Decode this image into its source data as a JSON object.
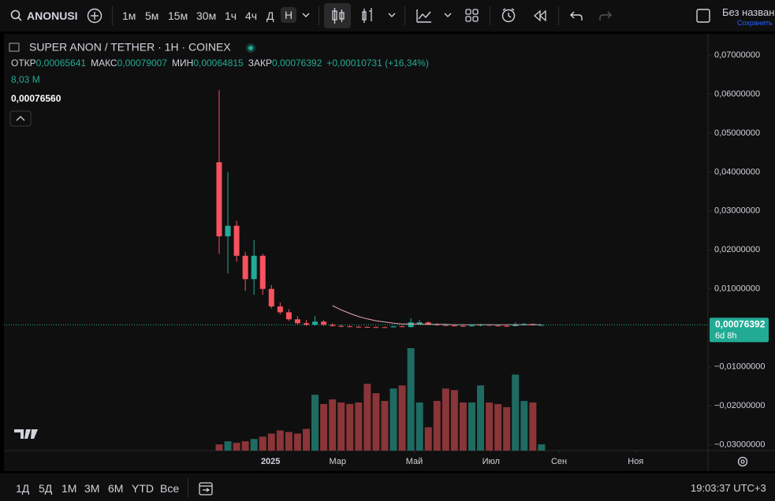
{
  "toolbar": {
    "symbol": "ANONUSI",
    "intervals": [
      "1м",
      "5м",
      "15м",
      "30м",
      "1ч",
      "4ч",
      "Д",
      "Н"
    ],
    "layout_name": "Без назван",
    "save_status": "Сохранить"
  },
  "legend": {
    "title": "SUPER ANON / TETHER · 1H · COINEX",
    "open_label": "ОТКР",
    "open": "0,00065641",
    "high_label": "МАКС",
    "high": "0,00079007",
    "low_label": "МИН",
    "low": "0,00064815",
    "close_label": "ЗАКР",
    "close": "0,00076392",
    "change": "+0,00010731 (+16,34%)",
    "volume": "8,03 M",
    "crosshair_price": "0,00076560"
  },
  "chart_data": {
    "type": "candlestick",
    "x": [
      0,
      1,
      2,
      3,
      4,
      5,
      6,
      7,
      8,
      9,
      10,
      11,
      12,
      13,
      14,
      15,
      16,
      17,
      18,
      19,
      20,
      21,
      22,
      23,
      24,
      25,
      26,
      27,
      28,
      29,
      30,
      31,
      32,
      33,
      34,
      35,
      36,
      37
    ],
    "open": [
      0.0425,
      0.0235,
      0.0262,
      0.0185,
      0.0125,
      0.0185,
      0.01,
      0.0055,
      0.004,
      0.0022,
      0.0012,
      0.0008,
      0.0016,
      0.0008,
      0.0005,
      0.0004,
      0.0003,
      0.00025,
      0.0002,
      0.00018,
      0.00015,
      0.0004,
      0.0002,
      0.001,
      0.0014,
      0.0009,
      0.0007,
      0.0006,
      0.0005,
      0.0004,
      0.0006,
      0.0008,
      0.0006,
      0.0005,
      0.00045,
      0.0009,
      0.001,
      0.00065641
    ],
    "high": [
      0.061,
      0.04,
      0.0275,
      0.0195,
      0.0225,
      0.019,
      0.011,
      0.0065,
      0.0048,
      0.003,
      0.002,
      0.003,
      0.002,
      0.0012,
      0.0008,
      0.0006,
      0.0005,
      0.0004,
      0.0004,
      0.0003,
      0.0005,
      0.0006,
      0.0025,
      0.002,
      0.0016,
      0.0012,
      0.001,
      0.0009,
      0.0008,
      0.0008,
      0.001,
      0.0009,
      0.0008,
      0.0007,
      0.0014,
      0.0012,
      0.0011,
      0.00079007
    ],
    "low": [
      0.019,
      0.014,
      0.017,
      0.0095,
      0.0085,
      0.0085,
      0.005,
      0.0035,
      0.0018,
      0.0008,
      0.0005,
      0.0006,
      0.0005,
      0.0003,
      0.0002,
      0.0002,
      0.0001,
      0.0001,
      0.0001,
      0.0001,
      0.0001,
      0.0002,
      0.0001,
      0.0008,
      0.0007,
      0.0005,
      0.0005,
      0.0004,
      0.0003,
      0.0003,
      0.0004,
      0.0005,
      0.0004,
      0.0004,
      0.0004,
      0.0006,
      0.0006,
      0.00064815
    ],
    "close": [
      0.0235,
      0.0262,
      0.0185,
      0.0125,
      0.0185,
      0.01,
      0.0055,
      0.004,
      0.0022,
      0.0012,
      0.0008,
      0.0016,
      0.0008,
      0.0005,
      0.0004,
      0.0003,
      0.00025,
      0.0002,
      0.00018,
      0.00015,
      0.0004,
      0.0002,
      0.0014,
      0.0014,
      0.0009,
      0.0007,
      0.0006,
      0.0005,
      0.0004,
      0.0006,
      0.0008,
      0.0006,
      0.0005,
      0.00045,
      0.0009,
      0.001,
      0.0007,
      0.00076392
    ],
    "volume": [
      8,
      12,
      10,
      12,
      15,
      18,
      22,
      26,
      24,
      22,
      28,
      72,
      60,
      66,
      62,
      60,
      62,
      86,
      74,
      64,
      80,
      84,
      132,
      62,
      30,
      64,
      80,
      78,
      62,
      62,
      84,
      62,
      60,
      56,
      98,
      64,
      62,
      8.03
    ],
    "line": [
      null,
      null,
      null,
      null,
      null,
      null,
      null,
      null,
      null,
      null,
      null,
      null,
      null,
      0.0057,
      0.0046,
      0.0037,
      0.0029,
      0.0023,
      0.0018,
      0.0015,
      0.0012,
      0.001,
      0.001,
      0.001,
      0.0009,
      0.0009,
      0.0009,
      0.0008,
      0.0008,
      0.0008,
      0.0008,
      0.0008,
      0.0008,
      0.0008,
      0.0008,
      0.0008,
      0.0008,
      0.0008
    ],
    "up_color": "#22ab94",
    "down_color": "#f7525f",
    "volume_up_color": "#1e6b62",
    "volume_down_color": "#8a3538",
    "line_color": "#e9a6b4",
    "xlim": [
      -24.7,
      56.1
    ],
    "ylim": [
      -0.0315,
      0.07505
    ],
    "xticks": [
      {
        "value": 5.9,
        "label": "2025"
      },
      {
        "value": 13.6,
        "label": "Мар"
      },
      {
        "value": 22.4,
        "label": "Май"
      },
      {
        "value": 31.2,
        "label": "Июл"
      },
      {
        "value": 39.0,
        "label": "Сен"
      },
      {
        "value": 47.8,
        "label": "Ноя"
      }
    ],
    "yticks": [
      {
        "value": 0.07,
        "label": "0,07000000"
      },
      {
        "value": 0.06,
        "label": "0,06000000"
      },
      {
        "value": 0.05,
        "label": "0,05000000"
      },
      {
        "value": 0.04,
        "label": "0,04000000"
      },
      {
        "value": 0.03,
        "label": "0,03000000"
      },
      {
        "value": 0.02,
        "label": "0,02000000"
      },
      {
        "value": 0.01,
        "label": "0,01000000"
      },
      {
        "value": -0.01,
        "label": "−0,01000000"
      },
      {
        "value": -0.02,
        "label": "−0,02000000"
      },
      {
        "value": -0.03,
        "label": "−0,03000000"
      }
    ],
    "last_price_label": "0,00076392",
    "countdown": "6d 8h"
  },
  "bottom_bar": {
    "ranges": [
      "1Д",
      "5Д",
      "1М",
      "3М",
      "6М",
      "YTD",
      "Все"
    ],
    "clock": "19:03:37 UTC+3"
  }
}
